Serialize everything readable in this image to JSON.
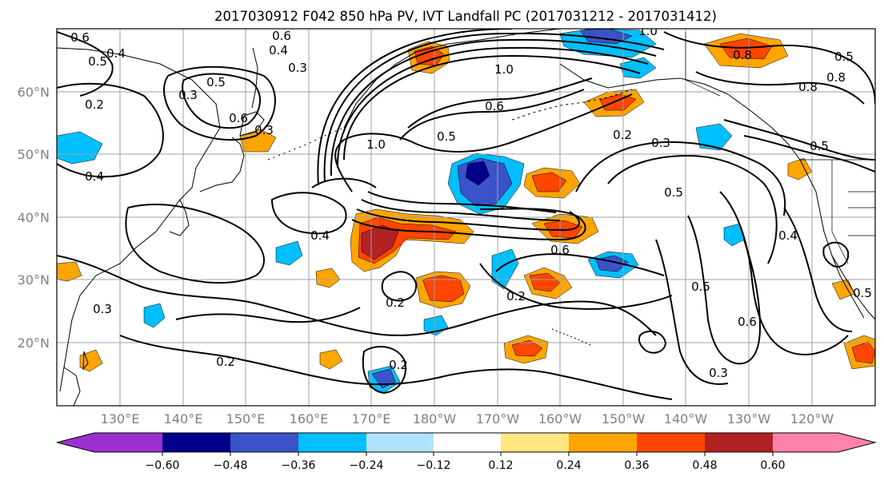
{
  "figure": {
    "title": "2017030912 F042 850 hPa PV, IVT Landfall PC (2017031212 - 2017031412)"
  },
  "map": {
    "lat_ticks": [
      "60°N",
      "50°N",
      "40°N",
      "30°N",
      "20°N"
    ],
    "lon_ticks": [
      "130°E",
      "140°E",
      "150°E",
      "160°E",
      "170°E",
      "180°W",
      "170°W",
      "160°W",
      "150°W",
      "140°W",
      "130°W",
      "120°W"
    ],
    "contour_labels": [
      "0.6",
      "0.5",
      "0.4",
      "0.2",
      "0.3",
      "0.5",
      "0.6",
      "0.3",
      "0.6",
      "0.4",
      "0.3",
      "1.0",
      "0.5",
      "0.6",
      "1.0",
      "1.0",
      "0.8",
      "0.5",
      "0.8",
      "0.2",
      "0.3",
      "0.5",
      "0.5",
      "0.4",
      "0.4",
      "0.6",
      "0.2",
      "0.3",
      "0.2",
      "0.2",
      "0.6",
      "0.5",
      "0.3",
      "0.8",
      "0.2",
      "0.5",
      "0.4"
    ]
  },
  "colorbar": {
    "labels": [
      "−0.60",
      "−0.48",
      "−0.36",
      "−0.24",
      "−0.12",
      "0.12",
      "0.24",
      "0.36",
      "0.48",
      "0.60"
    ],
    "colors": [
      "#9b30d0",
      "#00008b",
      "#3a53c9",
      "#00bfff",
      "#b0e2ff",
      "#ffffff",
      "#ffe680",
      "#ffa500",
      "#ff4500",
      "#b22222",
      "#ff82ab"
    ]
  }
}
